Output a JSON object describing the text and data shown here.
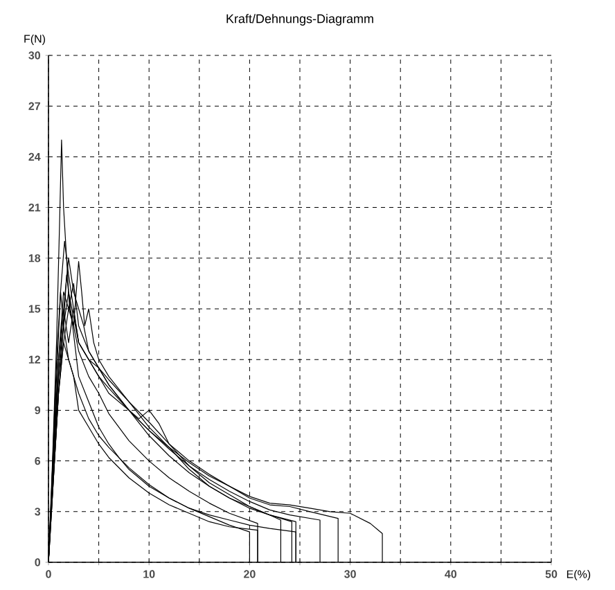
{
  "chart_data": {
    "type": "line",
    "title": "Kraft/Dehnungs-Diagramm",
    "xlabel": "E(%)",
    "ylabel": "F(N)",
    "xlim": [
      0,
      50
    ],
    "ylim": [
      0,
      30
    ],
    "xticks": [
      0,
      {
        "value": 5,
        "label": null
      },
      10,
      {
        "value": 15,
        "label": null
      },
      20,
      {
        "value": 25,
        "label": null
      },
      30,
      {
        "value": 35,
        "label": null
      },
      40,
      {
        "value": 45,
        "label": null
      },
      50
    ],
    "yticks": [
      0,
      3,
      6,
      9,
      12,
      15,
      18,
      21,
      24,
      27,
      30
    ],
    "grid": true,
    "line_style": "solid",
    "marker": "none",
    "series": [
      {
        "color": "#000000",
        "x": [
          0,
          0.3,
          0.6,
          0.9,
          1.2,
          1.5,
          1.8,
          2.2,
          2.6,
          3,
          4,
          5,
          6,
          7,
          8,
          10,
          12,
          14,
          16,
          18,
          20,
          20
        ],
        "values": [
          0,
          4,
          9,
          13,
          16,
          14,
          17,
          15,
          13,
          11,
          9.5,
          8,
          7,
          6.2,
          5.5,
          4.5,
          3.8,
          3.2,
          2.7,
          2.2,
          1.8,
          0
        ]
      },
      {
        "color": "#000000",
        "x": [
          0,
          0.4,
          0.8,
          1.1,
          1.3,
          1.5,
          1.8,
          2.1,
          2.5,
          3,
          4,
          5,
          6,
          8,
          10,
          12,
          14,
          16,
          18,
          20.8,
          20.8
        ],
        "values": [
          0,
          6,
          13,
          20,
          25,
          21,
          18,
          15,
          14,
          12.5,
          11,
          10,
          8.8,
          7.2,
          6,
          5,
          4.2,
          3.5,
          2.9,
          2.3,
          0
        ]
      },
      {
        "color": "#000000",
        "x": [
          0,
          0.5,
          1,
          1.5,
          2,
          2.5,
          3,
          3.5,
          4,
          5,
          6,
          8,
          10,
          12,
          14,
          16,
          18,
          20,
          22,
          23.1,
          23.1
        ],
        "values": [
          0,
          7,
          12,
          15,
          18,
          16,
          15,
          14,
          12.5,
          11.5,
          10.5,
          9,
          7.5,
          6.3,
          5.3,
          4.5,
          3.8,
          3.3,
          2.8,
          2.5,
          0
        ]
      },
      {
        "color": "#000000",
        "x": [
          0,
          0.5,
          1,
          1.5,
          2,
          2.5,
          3,
          3.3,
          3.6,
          4,
          4.5,
          5,
          6,
          8,
          10,
          12,
          14,
          16,
          18,
          20,
          22,
          24.2,
          24.2
        ],
        "values": [
          0,
          5,
          10,
          13,
          15,
          14,
          17.8,
          16,
          14,
          15,
          13,
          12,
          11,
          9.5,
          8,
          6.8,
          5.5,
          4.5,
          3.8,
          3.2,
          2.8,
          2.4,
          0
        ]
      },
      {
        "color": "#000000",
        "x": [
          0,
          0.4,
          0.8,
          1.2,
          1.6,
          2,
          2.5,
          3,
          4,
          5,
          6,
          8,
          9,
          10,
          11,
          12,
          14,
          16,
          18,
          20,
          22,
          24.6,
          24.6
        ],
        "values": [
          0,
          5,
          11,
          16,
          19,
          17,
          15,
          13,
          12,
          11,
          10,
          9,
          8.5,
          9,
          8.2,
          7,
          5.7,
          4.7,
          4,
          3.3,
          2.8,
          2.4,
          0
        ]
      },
      {
        "color": "#000000",
        "x": [
          0,
          0.5,
          1,
          1.5,
          2,
          2.5,
          3,
          4,
          5,
          6,
          8,
          10,
          12,
          14,
          16,
          18,
          20,
          22,
          24,
          27,
          27
        ],
        "values": [
          0,
          6,
          12,
          16,
          15,
          16.5,
          14,
          12.5,
          11.5,
          10.5,
          9,
          7.8,
          6.7,
          5.7,
          4.9,
          4.2,
          3.6,
          3.1,
          2.8,
          2.5,
          0
        ]
      },
      {
        "color": "#000000",
        "x": [
          0,
          0.5,
          1,
          1.5,
          2,
          2.5,
          3,
          4,
          5,
          6,
          8,
          10,
          12,
          14,
          16,
          18,
          20,
          22,
          24,
          26,
          28.8,
          28.8
        ],
        "values": [
          0,
          5,
          10,
          14,
          16,
          14.5,
          13,
          12,
          11.5,
          10.8,
          9.5,
          8.3,
          7,
          6,
          5.2,
          4.5,
          3.8,
          3.4,
          3.3,
          3.0,
          2.6,
          0
        ]
      },
      {
        "color": "#000000",
        "x": [
          0,
          0.5,
          1,
          1.5,
          2,
          2.5,
          3,
          4,
          5,
          6,
          8,
          10,
          12,
          14,
          16,
          18,
          20,
          22,
          24,
          26,
          28,
          30,
          32,
          33.2,
          33.2
        ],
        "values": [
          0,
          6,
          11,
          15,
          13,
          15,
          13,
          12,
          11,
          10.3,
          9,
          7.8,
          6.8,
          5.9,
          5.1,
          4.5,
          3.9,
          3.5,
          3.4,
          3.2,
          3.0,
          2.9,
          2.3,
          1.7,
          0
        ]
      },
      {
        "color": "#000000",
        "x": [
          0,
          0.5,
          1,
          1.5,
          2,
          2.5,
          3,
          4,
          5,
          6,
          8,
          10,
          12,
          14,
          16,
          18,
          20.8,
          20.8
        ],
        "values": [
          0,
          5,
          10,
          13,
          12,
          11,
          9,
          8,
          7,
          6.2,
          5,
          4.1,
          3.4,
          2.9,
          2.4,
          2.1,
          1.9,
          0
        ]
      },
      {
        "color": "#000000",
        "x": [
          0,
          0.5,
          1,
          1.5,
          2,
          3,
          4,
          5,
          6,
          8,
          10,
          12,
          14,
          16,
          18,
          20,
          22,
          24.6,
          24.6
        ],
        "values": [
          0,
          6,
          11,
          14,
          12,
          10,
          8.5,
          7.5,
          6.8,
          5.6,
          4.6,
          3.8,
          3.2,
          2.8,
          2.5,
          2.2,
          2.0,
          1.8,
          0
        ]
      }
    ]
  }
}
